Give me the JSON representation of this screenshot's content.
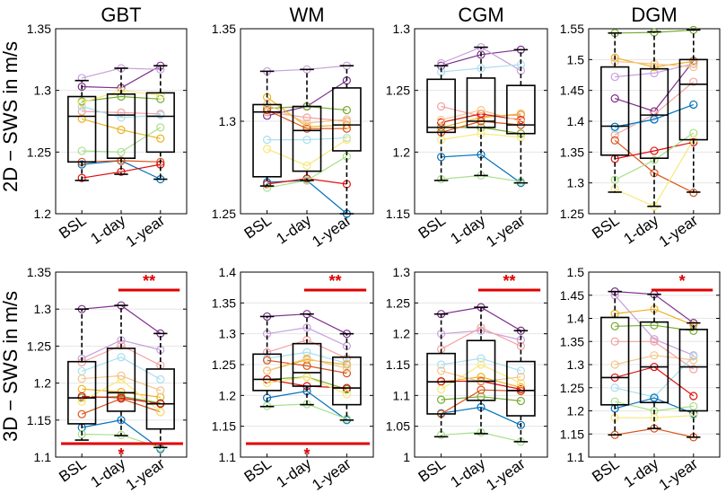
{
  "rows": [
    {
      "ylabel": "2D − SWS in m/s"
    },
    {
      "ylabel": "3D − SWS in m/s"
    }
  ],
  "colors": {
    "box": "#000000",
    "significance": "#e00000",
    "grid": "#e6e6e6",
    "subjects": [
      "#7e2f8e",
      "#c9a0dc",
      "#f5a1a1",
      "#a8dff0",
      "#edb120",
      "#77ac30",
      "#0072bd",
      "#d95319",
      "#e01010",
      "#a9e08a",
      "#f7e87a",
      "#f5c48a"
    ]
  },
  "chart_data": [
    {
      "type": "box",
      "title": "GBT",
      "ylabel": "2D − SWS in m/s",
      "categories": [
        "BSL",
        "1-day",
        "1-year"
      ],
      "ylim": [
        1.2,
        1.35
      ],
      "yticks": [
        "1.2",
        "1.25",
        "1.3",
        "1.35"
      ],
      "boxes": [
        {
          "min": 1.227,
          "q1": 1.242,
          "median": 1.279,
          "q3": 1.295,
          "max": 1.308
        },
        {
          "min": 1.232,
          "q1": 1.245,
          "median": 1.28,
          "q3": 1.297,
          "max": 1.318
        },
        {
          "min": 1.228,
          "q1": 1.25,
          "median": 1.279,
          "q3": 1.298,
          "max": 1.32
        }
      ],
      "subjects": [
        [
          1.303,
          1.302,
          1.32
        ],
        [
          1.31,
          1.318,
          1.317
        ],
        [
          1.283,
          1.282,
          1.281
        ],
        [
          1.287,
          1.278,
          1.28
        ],
        [
          1.277,
          1.268,
          1.261
        ],
        [
          1.291,
          1.295,
          1.293
        ],
        [
          1.24,
          1.243,
          1.228
        ],
        [
          1.242,
          1.243,
          1.242
        ],
        [
          1.229,
          1.234,
          1.24
        ],
        [
          1.251,
          1.25,
          1.27
        ],
        [
          1.29,
          1.3,
          1.296
        ]
      ],
      "significance": []
    },
    {
      "type": "box",
      "title": "WM",
      "ylabel": "",
      "categories": [
        "BSL",
        "1-day",
        "1-year"
      ],
      "ylim": [
        1.25,
        1.35
      ],
      "yticks": [
        "1.25",
        "1.3",
        "1.35"
      ],
      "boxes": [
        {
          "min": 1.265,
          "q1": 1.27,
          "median": 1.305,
          "q3": 1.309,
          "max": 1.327
        },
        {
          "min": 1.268,
          "q1": 1.273,
          "median": 1.295,
          "q3": 1.308,
          "max": 1.328
        },
        {
          "min": 1.25,
          "q1": 1.284,
          "median": 1.298,
          "q3": 1.318,
          "max": 1.33
        }
      ],
      "subjects": [
        [
          1.303,
          1.308,
          1.322
        ],
        [
          1.327,
          1.328,
          1.33
        ],
        [
          1.305,
          1.302,
          1.3
        ],
        [
          1.29,
          1.29,
          1.291
        ],
        [
          1.313,
          1.297,
          1.298
        ],
        [
          1.307,
          1.308,
          1.306
        ],
        [
          1.267,
          1.268,
          1.25
        ],
        [
          1.306,
          1.296,
          1.296
        ],
        [
          1.266,
          1.269,
          1.266
        ],
        [
          1.264,
          1.268,
          1.281
        ],
        [
          1.285,
          1.276,
          1.29
        ],
        [
          1.309,
          1.299,
          1.301
        ]
      ],
      "significance": []
    },
    {
      "type": "box",
      "title": "CGM",
      "ylabel": "",
      "categories": [
        "BSL",
        "1-day",
        "1-year"
      ],
      "ylim": [
        1.15,
        1.3
      ],
      "yticks": [
        "1.15",
        "1.2",
        "1.25",
        "1.3"
      ],
      "boxes": [
        {
          "min": 1.177,
          "q1": 1.216,
          "median": 1.22,
          "q3": 1.259,
          "max": 1.27
        },
        {
          "min": 1.181,
          "q1": 1.22,
          "median": 1.225,
          "q3": 1.26,
          "max": 1.285
        },
        {
          "min": 1.175,
          "q1": 1.215,
          "median": 1.222,
          "q3": 1.254,
          "max": 1.283
        }
      ],
      "subjects": [
        [
          1.27,
          1.279,
          1.283
        ],
        [
          1.272,
          1.285,
          1.266
        ],
        [
          1.237,
          1.229,
          1.23
        ],
        [
          1.265,
          1.268,
          1.271
        ],
        [
          1.22,
          1.228,
          1.231
        ],
        [
          1.22,
          1.22,
          1.215
        ],
        [
          1.196,
          1.198,
          1.175
        ],
        [
          1.216,
          1.225,
          1.222
        ],
        [
          1.224,
          1.231,
          1.226
        ],
        [
          1.178,
          1.181,
          1.176
        ],
        [
          1.21,
          1.215,
          1.212
        ],
        [
          1.226,
          1.234,
          1.225
        ]
      ],
      "significance": []
    },
    {
      "type": "box",
      "title": "DGM",
      "ylabel": "",
      "categories": [
        "BSL",
        "1-day",
        "1-year"
      ],
      "ylim": [
        1.25,
        1.55
      ],
      "yticks": [
        "1.25",
        "1.3",
        "1.35",
        "1.4",
        "1.45",
        "1.5",
        "1.55"
      ],
      "boxes": [
        {
          "min": 1.285,
          "q1": 1.345,
          "median": 1.392,
          "q3": 1.488,
          "max": 1.543
        },
        {
          "min": 1.262,
          "q1": 1.34,
          "median": 1.41,
          "q3": 1.485,
          "max": 1.545
        },
        {
          "min": 1.285,
          "q1": 1.37,
          "median": 1.46,
          "q3": 1.5,
          "max": 1.548
        }
      ],
      "subjects": [
        [
          1.437,
          1.416,
          1.498
        ],
        [
          1.472,
          1.478,
          1.493
        ],
        [
          1.378,
          1.411,
          1.464
        ],
        [
          1.388,
          1.403,
          1.427
        ],
        [
          1.503,
          1.488,
          1.497
        ],
        [
          1.543,
          1.544,
          1.548
        ],
        [
          1.391,
          1.403,
          1.427
        ],
        [
          1.369,
          1.316,
          1.284
        ],
        [
          1.339,
          1.352,
          1.366
        ],
        [
          1.305,
          1.337,
          1.381
        ],
        [
          1.29,
          1.262,
          1.37
        ],
        [
          1.497,
          1.493,
          1.488
        ]
      ],
      "significance": []
    },
    {
      "type": "box",
      "title": "",
      "ylabel": "3D − SWS in m/s",
      "categories": [
        "BSL",
        "1-day",
        "1-year"
      ],
      "ylim": [
        1.1,
        1.35
      ],
      "yticks": [
        "1.1",
        "1.15",
        "1.2",
        "1.25",
        "1.3",
        "1.35"
      ],
      "boxes": [
        {
          "min": 1.123,
          "q1": 1.145,
          "median": 1.18,
          "q3": 1.229,
          "max": 1.3
        },
        {
          "min": 1.129,
          "q1": 1.162,
          "median": 1.187,
          "q3": 1.247,
          "max": 1.305
        },
        {
          "min": 1.113,
          "q1": 1.138,
          "median": 1.172,
          "q3": 1.219,
          "max": 1.267
        }
      ],
      "subjects": [
        [
          1.3,
          1.305,
          1.267
        ],
        [
          1.233,
          1.258,
          1.245
        ],
        [
          1.228,
          1.251,
          1.224
        ],
        [
          1.216,
          1.235,
          1.205
        ],
        [
          1.192,
          1.188,
          1.181
        ],
        [
          1.18,
          1.182,
          1.173
        ],
        [
          1.14,
          1.15,
          1.111
        ],
        [
          1.158,
          1.179,
          1.161
        ],
        [
          1.182,
          1.18,
          1.172
        ],
        [
          1.131,
          1.13,
          1.113
        ],
        [
          1.175,
          1.205,
          1.161
        ],
        [
          1.206,
          1.21,
          1.19
        ]
      ],
      "significance": [
        {
          "label": "**",
          "from": 1,
          "to": 2,
          "position": "top"
        },
        {
          "label": "*",
          "from": 0,
          "to": 2,
          "position": "bottom"
        }
      ]
    },
    {
      "type": "box",
      "title": "",
      "ylabel": "",
      "categories": [
        "BSL",
        "1-day",
        "1-year"
      ],
      "ylim": [
        1.1,
        1.4
      ],
      "yticks": [
        "1.1",
        "1.15",
        "1.2",
        "1.25",
        "1.3",
        "1.35",
        "1.4"
      ],
      "boxes": [
        {
          "min": 1.182,
          "q1": 1.208,
          "median": 1.226,
          "q3": 1.267,
          "max": 1.328
        },
        {
          "min": 1.185,
          "q1": 1.215,
          "median": 1.237,
          "q3": 1.284,
          "max": 1.332
        },
        {
          "min": 1.16,
          "q1": 1.185,
          "median": 1.212,
          "q3": 1.262,
          "max": 1.3
        }
      ],
      "subjects": [
        [
          1.328,
          1.332,
          1.3
        ],
        [
          1.3,
          1.31,
          1.28
        ],
        [
          1.27,
          1.29,
          1.26
        ],
        [
          1.26,
          1.27,
          1.252
        ],
        [
          1.24,
          1.258,
          1.25
        ],
        [
          1.226,
          1.23,
          1.21
        ],
        [
          1.196,
          1.207,
          1.16
        ],
        [
          1.257,
          1.248,
          1.236
        ],
        [
          1.226,
          1.215,
          1.212
        ],
        [
          1.183,
          1.186,
          1.162
        ],
        [
          1.22,
          1.23,
          1.202
        ],
        [
          1.24,
          1.26,
          1.244
        ]
      ],
      "significance": [
        {
          "label": "**",
          "from": 1,
          "to": 2,
          "position": "top"
        },
        {
          "label": "*",
          "from": 0,
          "to": 2,
          "position": "bottom"
        }
      ]
    },
    {
      "type": "box",
      "title": "",
      "ylabel": "",
      "categories": [
        "BSL",
        "1-day",
        "1-year"
      ],
      "ylim": [
        1.0,
        1.3
      ],
      "yticks": [
        "1",
        "1.05",
        "1.1",
        "1.15",
        "1.2",
        "1.25",
        "1.3"
      ],
      "boxes": [
        {
          "min": 1.033,
          "q1": 1.07,
          "median": 1.122,
          "q3": 1.168,
          "max": 1.232
        },
        {
          "min": 1.038,
          "q1": 1.092,
          "median": 1.123,
          "q3": 1.189,
          "max": 1.243
        },
        {
          "min": 1.025,
          "q1": 1.067,
          "median": 1.108,
          "q3": 1.155,
          "max": 1.205
        }
      ],
      "subjects": [
        [
          1.232,
          1.243,
          1.205
        ],
        [
          1.2,
          1.205,
          1.19
        ],
        [
          1.175,
          1.21,
          1.18
        ],
        [
          1.15,
          1.16,
          1.14
        ],
        [
          1.122,
          1.13,
          1.113
        ],
        [
          1.093,
          1.098,
          1.091
        ],
        [
          1.071,
          1.081,
          1.052
        ],
        [
          1.07,
          1.109,
          1.107
        ],
        [
          1.123,
          1.123,
          1.11
        ],
        [
          1.036,
          1.04,
          1.025
        ],
        [
          1.11,
          1.15,
          1.12
        ],
        [
          1.14,
          1.122,
          1.13
        ]
      ],
      "significance": [
        {
          "label": "**",
          "from": 1,
          "to": 2,
          "position": "top"
        }
      ]
    },
    {
      "type": "box",
      "title": "",
      "ylabel": "",
      "categories": [
        "BSL",
        "1-day",
        "1-year"
      ],
      "ylim": [
        1.1,
        1.5
      ],
      "yticks": [
        "1.1",
        "1.15",
        "1.2",
        "1.25",
        "1.3",
        "1.35",
        "1.4",
        "1.45",
        "1.5"
      ],
      "boxes": [
        {
          "min": 1.148,
          "q1": 1.213,
          "median": 1.272,
          "q3": 1.402,
          "max": 1.458
        },
        {
          "min": 1.162,
          "q1": 1.218,
          "median": 1.295,
          "q3": 1.392,
          "max": 1.452
        },
        {
          "min": 1.143,
          "q1": 1.2,
          "median": 1.295,
          "q3": 1.376,
          "max": 1.39
        }
      ],
      "subjects": [
        [
          1.458,
          1.452,
          1.39
        ],
        [
          1.45,
          1.355,
          1.32
        ],
        [
          1.35,
          1.35,
          1.29
        ],
        [
          1.25,
          1.23,
          1.318
        ],
        [
          1.41,
          1.42,
          1.385
        ],
        [
          1.383,
          1.385,
          1.373
        ],
        [
          1.205,
          1.228,
          1.194
        ],
        [
          1.148,
          1.162,
          1.143
        ],
        [
          1.272,
          1.295,
          1.232
        ],
        [
          1.22,
          1.2,
          1.21
        ],
        [
          1.185,
          1.185,
          1.19
        ],
        [
          1.3,
          1.32,
          1.31
        ]
      ],
      "significance": [
        {
          "label": "*",
          "from": 1,
          "to": 2,
          "position": "top"
        }
      ]
    }
  ]
}
